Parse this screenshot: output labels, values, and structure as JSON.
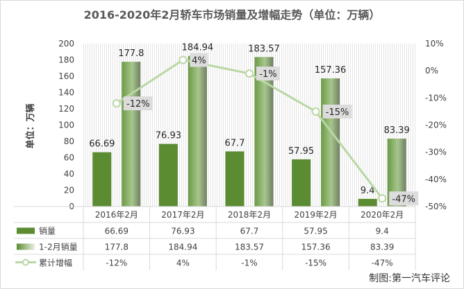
{
  "chart_data": {
    "type": "bar",
    "title": "2016-2020年2月轿车市场销量及增幅走势（单位：万辆）",
    "ylabel": "单位：万辆",
    "ylim": [
      0,
      200
    ],
    "yticks": [
      0,
      20,
      40,
      60,
      80,
      100,
      120,
      140,
      160,
      180,
      200
    ],
    "y2lim": [
      -50,
      10
    ],
    "y2ticks": [
      "10%",
      "0%",
      "-10%",
      "-20%",
      "-30%",
      "-40%",
      "-50%"
    ],
    "categories": [
      "2016年2月",
      "2017年2月",
      "2018年2月",
      "2019年2月",
      "2020年2月"
    ],
    "series": [
      {
        "name": "销量",
        "type": "bar",
        "values": [
          66.69,
          76.93,
          67.7,
          57.95,
          9.4
        ],
        "labels": [
          "66.69",
          "76.93",
          "67.7",
          "57.95",
          "9.4"
        ],
        "color": "#5b8c32"
      },
      {
        "name": "1-2月销量",
        "type": "bar",
        "values": [
          177.8,
          184.94,
          183.57,
          157.36,
          83.39
        ],
        "labels": [
          "177.8",
          "184.94",
          "183.57",
          "157.36",
          "83.39"
        ],
        "color": "#8fb070"
      },
      {
        "name": "累计增幅",
        "type": "line",
        "axis": "right",
        "values": [
          -12,
          4,
          -1,
          -15,
          -47
        ],
        "labels": [
          "-12%",
          "4%",
          "-1%",
          "-15%",
          "-47%"
        ],
        "color": "#b9d7a5"
      }
    ],
    "legend": "bottom-left",
    "grid": false
  },
  "credit": "制图:第一汽车评论"
}
